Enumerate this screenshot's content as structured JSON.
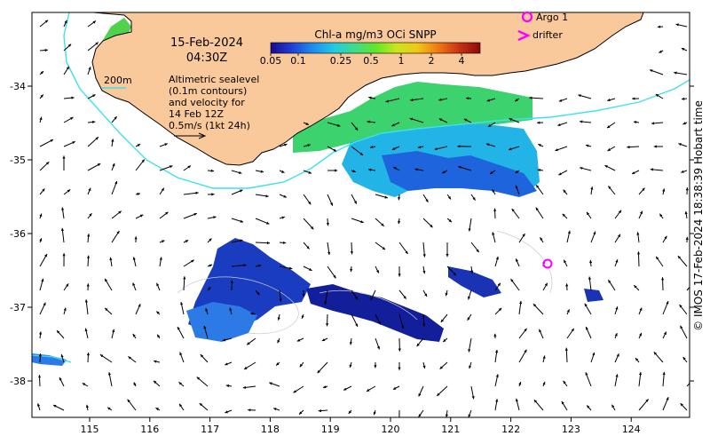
{
  "title": {
    "date": "15-Feb-2024",
    "time": "04:30Z"
  },
  "colorbar": {
    "title": "Chl-a mg/m3 OCi SNPP",
    "tick_labels": [
      "0.05",
      "0.1",
      "0.25",
      "0.5",
      "1",
      "2",
      "4"
    ],
    "stops": [
      "#1a0a8c",
      "#1f3fd8",
      "#1e8cf0",
      "#22c8e6",
      "#3edc8c",
      "#5fe628",
      "#c8e61e",
      "#f0c814",
      "#f07814",
      "#c83214",
      "#8c0a0a"
    ]
  },
  "legend": {
    "argo_label": "Argo 1",
    "drifter_label": "drifter",
    "isobath_label": "200m",
    "marker_color": "#ff00ff",
    "isobath_color": "#3ee0f0"
  },
  "annotation": {
    "lines": [
      "Altimetric sealevel",
      "(0.1m contours)",
      "and velocity for",
      "14 Feb 12Z",
      "0.5m/s (1kt 24h)"
    ]
  },
  "axes": {
    "x_ticks": [
      "115",
      "116",
      "117",
      "118",
      "119",
      "120",
      "121",
      "122",
      "123",
      "124"
    ],
    "y_ticks": [
      "-34",
      "-35",
      "-36",
      "-37",
      "-38"
    ]
  },
  "credit": "© IMOS 17-Feb-2024 18:38:39 Hobart time",
  "colors": {
    "land": "#f9c99b",
    "coast": "#000000",
    "arrow": "#000000"
  }
}
